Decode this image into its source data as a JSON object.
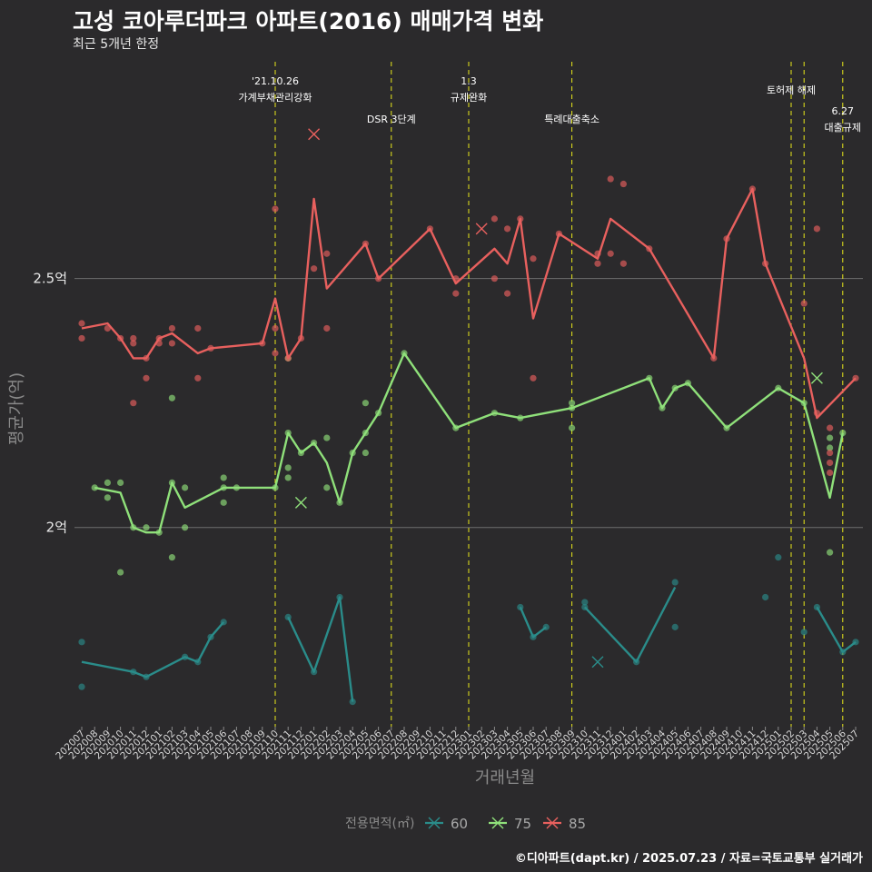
{
  "title": "고성 코아루더파크 아파트(2016) 매매가격 변화",
  "subtitle": "최근 5개년 한정",
  "caption": "©디아파트(dapt.kr) / 2025.07.23 / 자료=국토교통부 실거래가",
  "colors": {
    "background": "#2b2a2c",
    "s60": "#2a8c8a",
    "s75": "#8fe07a",
    "s85": "#e8605e",
    "event_line": "#e8e81a"
  },
  "chart_data": {
    "type": "line",
    "xlabel": "거래년월",
    "ylabel": "평균가(억)",
    "ylim": [
      1.6,
      2.95
    ],
    "yticks": [
      {
        "value": 2.0,
        "label": "2억"
      },
      {
        "value": 2.5,
        "label": "2.5억"
      }
    ],
    "x_categories": [
      "202007",
      "202008",
      "202009",
      "202010",
      "202011",
      "202012",
      "202101",
      "202102",
      "202103",
      "202104",
      "202105",
      "202106",
      "202107",
      "202108",
      "202109",
      "202110",
      "202111",
      "202112",
      "202201",
      "202202",
      "202203",
      "202204",
      "202205",
      "202206",
      "202207",
      "202208",
      "202209",
      "202210",
      "202211",
      "202212",
      "202301",
      "202302",
      "202303",
      "202304",
      "202305",
      "202306",
      "202307",
      "202308",
      "202309",
      "202310",
      "202311",
      "202312",
      "202401",
      "202402",
      "202403",
      "202404",
      "202405",
      "202406",
      "202407",
      "202408",
      "202409",
      "202410",
      "202411",
      "202412",
      "202501",
      "202502",
      "202503",
      "202504",
      "202505",
      "202506",
      "202507"
    ],
    "legend": {
      "title": "전용면적(㎡)",
      "position": "bottom",
      "entries": [
        "60",
        "75",
        "85"
      ]
    },
    "events": [
      {
        "x": "202110",
        "label1": "'21.10.26",
        "label2": "가계부채관리강화"
      },
      {
        "x": "202207",
        "label1": "",
        "label2": "DSR 3단계"
      },
      {
        "x": "202301",
        "label1": "1.3",
        "label2": "규제완화"
      },
      {
        "x": "202309",
        "label1": "",
        "label2": "특례대출축소"
      },
      {
        "x": "202502",
        "label1": "",
        "label2": "토허제 해제"
      },
      {
        "x": "202503",
        "label1": "",
        "label2": ""
      },
      {
        "x": "202506",
        "label1": "6.27",
        "label2": "대출규제"
      }
    ],
    "series": [
      {
        "name": "60",
        "color": "#2a8c8a",
        "lines": [
          [
            [
              "202007",
              1.73
            ],
            [
              "202011",
              1.71
            ],
            [
              "202012",
              1.7
            ],
            [
              "202103",
              1.74
            ],
            [
              "202104",
              1.73
            ],
            [
              "202105",
              1.78
            ],
            [
              "202106",
              1.81
            ]
          ],
          [
            [
              "202111",
              1.82
            ],
            [
              "202201",
              1.71
            ],
            [
              "202203",
              1.86
            ],
            [
              "202204",
              1.65
            ]
          ],
          [
            [
              "202305",
              1.84
            ],
            [
              "202306",
              1.78
            ],
            [
              "202307",
              1.8
            ]
          ],
          [
            [
              "202310",
              1.84
            ],
            [
              "202402",
              1.73
            ],
            [
              "202405",
              1.88
            ]
          ],
          [
            [
              "202504",
              1.84
            ],
            [
              "202506",
              1.75
            ],
            [
              "202507",
              1.77
            ]
          ]
        ],
        "points": [
          [
            "202007",
            1.77
          ],
          [
            "202007",
            1.68
          ],
          [
            "202011",
            1.71
          ],
          [
            "202012",
            1.7
          ],
          [
            "202103",
            1.74
          ],
          [
            "202104",
            1.73
          ],
          [
            "202105",
            1.78
          ],
          [
            "202106",
            1.81
          ],
          [
            "202111",
            1.82
          ],
          [
            "202201",
            1.71
          ],
          [
            "202203",
            1.86
          ],
          [
            "202204",
            1.65
          ],
          [
            "202305",
            1.84
          ],
          [
            "202306",
            1.78
          ],
          [
            "202307",
            1.8
          ],
          [
            "202310",
            1.84
          ],
          [
            "202310",
            1.85
          ],
          [
            "202402",
            1.73
          ],
          [
            "202405",
            1.89
          ],
          [
            "202405",
            1.8
          ],
          [
            "202501",
            1.94
          ],
          [
            "202503",
            1.79
          ],
          [
            "202504",
            1.84
          ],
          [
            "202506",
            1.75
          ],
          [
            "202507",
            1.77
          ],
          [
            "202412",
            1.86
          ]
        ],
        "crosses": [
          [
            "202311",
            1.73
          ]
        ]
      },
      {
        "name": "75",
        "color": "#8fe07a",
        "lines": [
          [
            [
              "202008",
              2.08
            ],
            [
              "202010",
              2.07
            ],
            [
              "202011",
              2.0
            ],
            [
              "202012",
              1.99
            ],
            [
              "202101",
              1.99
            ],
            [
              "202102",
              2.09
            ],
            [
              "202103",
              2.04
            ],
            [
              "202106",
              2.08
            ],
            [
              "202110",
              2.08
            ],
            [
              "202111",
              2.19
            ],
            [
              "202112",
              2.15
            ],
            [
              "202201",
              2.17
            ],
            [
              "202202",
              2.13
            ],
            [
              "202203",
              2.05
            ],
            [
              "202204",
              2.15
            ],
            [
              "202205",
              2.19
            ],
            [
              "202206",
              2.23
            ],
            [
              "202208",
              2.35
            ],
            [
              "202212",
              2.2
            ],
            [
              "202303",
              2.23
            ],
            [
              "202305",
              2.22
            ],
            [
              "202309",
              2.24
            ],
            [
              "202403",
              2.3
            ],
            [
              "202404",
              2.24
            ],
            [
              "202405",
              2.28
            ],
            [
              "202406",
              2.29
            ],
            [
              "202409",
              2.2
            ],
            [
              "202501",
              2.28
            ],
            [
              "202503",
              2.25
            ],
            [
              "202505",
              2.06
            ],
            [
              "202506",
              2.19
            ]
          ]
        ],
        "points": [
          [
            "202008",
            2.08
          ],
          [
            "202009",
            2.09
          ],
          [
            "202009",
            2.06
          ],
          [
            "202010",
            2.09
          ],
          [
            "202010",
            1.91
          ],
          [
            "202011",
            2.0
          ],
          [
            "202012",
            2.0
          ],
          [
            "202101",
            1.99
          ],
          [
            "202102",
            2.09
          ],
          [
            "202102",
            2.26
          ],
          [
            "202102",
            1.94
          ],
          [
            "202103",
            2.08
          ],
          [
            "202103",
            2.0
          ],
          [
            "202106",
            2.08
          ],
          [
            "202106",
            2.1
          ],
          [
            "202106",
            2.05
          ],
          [
            "202107",
            2.08
          ],
          [
            "202110",
            2.08
          ],
          [
            "202111",
            2.19
          ],
          [
            "202111",
            2.12
          ],
          [
            "202111",
            2.1
          ],
          [
            "202111",
            2.34
          ],
          [
            "202112",
            2.15
          ],
          [
            "202201",
            2.17
          ],
          [
            "202202",
            2.18
          ],
          [
            "202202",
            2.08
          ],
          [
            "202203",
            2.05
          ],
          [
            "202204",
            2.15
          ],
          [
            "202205",
            2.19
          ],
          [
            "202205",
            2.15
          ],
          [
            "202205",
            2.25
          ],
          [
            "202206",
            2.23
          ],
          [
            "202208",
            2.35
          ],
          [
            "202212",
            2.2
          ],
          [
            "202303",
            2.23
          ],
          [
            "202305",
            2.22
          ],
          [
            "202309",
            2.24
          ],
          [
            "202309",
            2.25
          ],
          [
            "202309",
            2.2
          ],
          [
            "202403",
            2.3
          ],
          [
            "202404",
            2.24
          ],
          [
            "202405",
            2.28
          ],
          [
            "202406",
            2.29
          ],
          [
            "202409",
            2.2
          ],
          [
            "202501",
            2.28
          ],
          [
            "202503",
            2.25
          ],
          [
            "202505",
            2.18
          ],
          [
            "202505",
            2.16
          ],
          [
            "202505",
            1.95
          ],
          [
            "202506",
            2.19
          ]
        ],
        "crosses": [
          [
            "202112",
            2.05
          ],
          [
            "202504",
            2.3
          ]
        ]
      },
      {
        "name": "85",
        "color": "#e8605e",
        "lines": [
          [
            [
              "202007",
              2.4
            ],
            [
              "202009",
              2.41
            ],
            [
              "202010",
              2.38
            ],
            [
              "202011",
              2.34
            ],
            [
              "202012",
              2.34
            ],
            [
              "202101",
              2.38
            ],
            [
              "202102",
              2.39
            ],
            [
              "202104",
              2.35
            ],
            [
              "202105",
              2.36
            ],
            [
              "202109",
              2.37
            ],
            [
              "202110",
              2.46
            ],
            [
              "202111",
              2.34
            ],
            [
              "202112",
              2.38
            ],
            [
              "202201",
              2.66
            ],
            [
              "202202",
              2.48
            ],
            [
              "202205",
              2.57
            ],
            [
              "202206",
              2.5
            ],
            [
              "202210",
              2.6
            ],
            [
              "202212",
              2.49
            ],
            [
              "202303",
              2.56
            ],
            [
              "202304",
              2.53
            ],
            [
              "202305",
              2.62
            ],
            [
              "202306",
              2.42
            ],
            [
              "202308",
              2.59
            ],
            [
              "202311",
              2.54
            ],
            [
              "202312",
              2.62
            ],
            [
              "202403",
              2.56
            ],
            [
              "202408",
              2.34
            ],
            [
              "202409",
              2.58
            ],
            [
              "202411",
              2.68
            ],
            [
              "202412",
              2.53
            ],
            [
              "202503",
              2.34
            ],
            [
              "202504",
              2.22
            ],
            [
              "202507",
              2.3
            ]
          ]
        ],
        "points": [
          [
            "202007",
            2.41
          ],
          [
            "202007",
            2.38
          ],
          [
            "202009",
            2.4
          ],
          [
            "202010",
            2.38
          ],
          [
            "202011",
            2.38
          ],
          [
            "202011",
            2.37
          ],
          [
            "202011",
            2.25
          ],
          [
            "202012",
            2.34
          ],
          [
            "202012",
            2.3
          ],
          [
            "202101",
            2.38
          ],
          [
            "202101",
            2.37
          ],
          [
            "202102",
            2.4
          ],
          [
            "202102",
            2.37
          ],
          [
            "202104",
            2.4
          ],
          [
            "202104",
            2.3
          ],
          [
            "202105",
            2.36
          ],
          [
            "202109",
            2.37
          ],
          [
            "202110",
            2.64
          ],
          [
            "202110",
            2.4
          ],
          [
            "202110",
            2.35
          ],
          [
            "202111",
            2.34
          ],
          [
            "202112",
            2.38
          ],
          [
            "202201",
            2.52
          ],
          [
            "202202",
            2.55
          ],
          [
            "202202",
            2.4
          ],
          [
            "202205",
            2.57
          ],
          [
            "202206",
            2.5
          ],
          [
            "202210",
            2.6
          ],
          [
            "202212",
            2.5
          ],
          [
            "202212",
            2.47
          ],
          [
            "202303",
            2.62
          ],
          [
            "202303",
            2.5
          ],
          [
            "202304",
            2.6
          ],
          [
            "202304",
            2.47
          ],
          [
            "202305",
            2.62
          ],
          [
            "202306",
            2.54
          ],
          [
            "202306",
            2.3
          ],
          [
            "202308",
            2.59
          ],
          [
            "202311",
            2.53
          ],
          [
            "202311",
            2.55
          ],
          [
            "202312",
            2.7
          ],
          [
            "202312",
            2.55
          ],
          [
            "202401",
            2.69
          ],
          [
            "202401",
            2.53
          ],
          [
            "202403",
            2.56
          ],
          [
            "202408",
            2.34
          ],
          [
            "202409",
            2.58
          ],
          [
            "202411",
            2.68
          ],
          [
            "202412",
            2.53
          ],
          [
            "202503",
            2.45
          ],
          [
            "202504",
            2.6
          ],
          [
            "202504",
            2.23
          ],
          [
            "202505",
            2.2
          ],
          [
            "202505",
            2.13
          ],
          [
            "202505",
            2.15
          ],
          [
            "202505",
            2.11
          ],
          [
            "202507",
            2.3
          ]
        ],
        "crosses": [
          [
            "202201",
            2.79
          ],
          [
            "202302",
            2.6
          ]
        ]
      }
    ]
  }
}
